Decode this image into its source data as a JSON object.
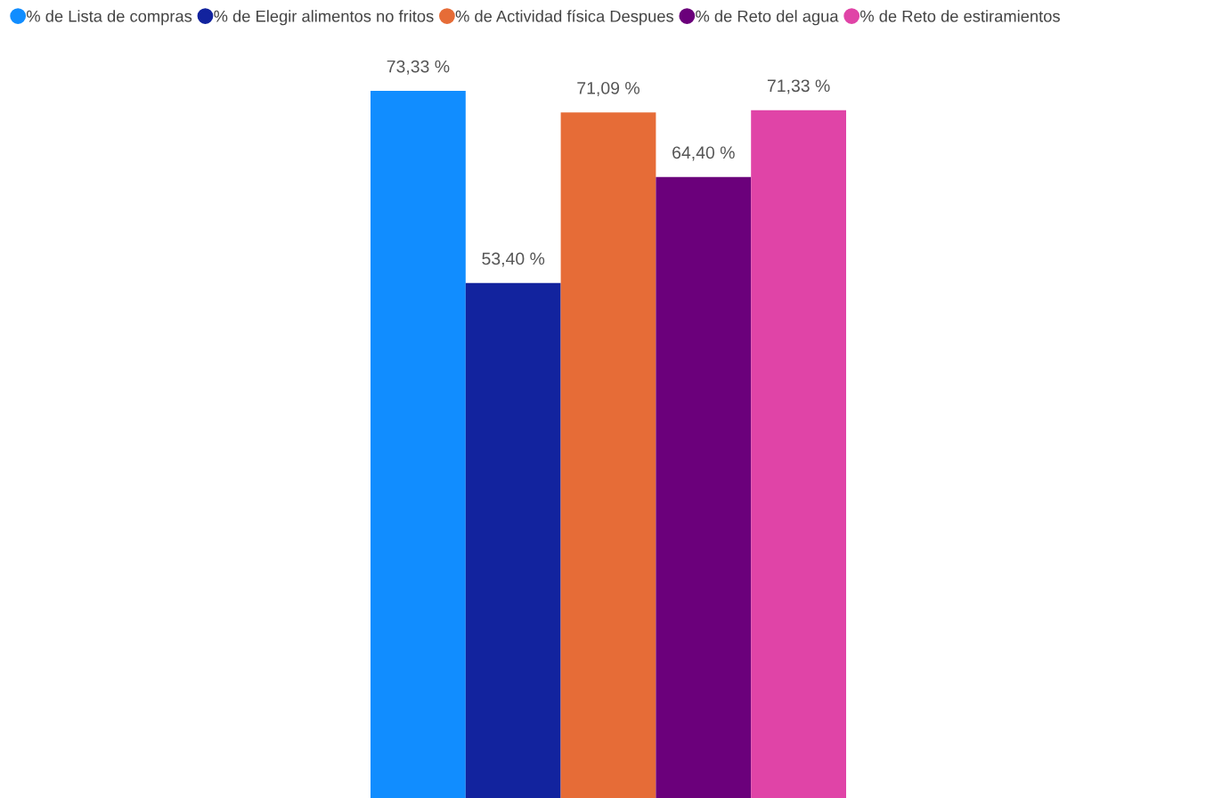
{
  "chart_data": {
    "type": "bar",
    "categories": [
      null
    ],
    "series": [
      {
        "name": "% de Lista de compras",
        "color": "#118dff",
        "values": [
          73.33
        ],
        "value_labels": [
          "73,33 %"
        ]
      },
      {
        "name": "% de Elegir alimentos no fritos",
        "color": "#12239e",
        "values": [
          53.4
        ],
        "value_labels": [
          "53,40 %"
        ]
      },
      {
        "name": "% de Actividad física Despues",
        "color": "#e66c37",
        "values": [
          71.09
        ],
        "value_labels": [
          "71,09 %"
        ]
      },
      {
        "name": "% de Reto del agua",
        "color": "#6b007b",
        "values": [
          64.4
        ],
        "value_labels": [
          "64,40 %"
        ]
      },
      {
        "name": "% de Reto de estiramientos",
        "color": "#e044a7",
        "values": [
          71.33
        ],
        "value_labels": [
          "71,33 %"
        ]
      }
    ],
    "legend": "top left"
  }
}
